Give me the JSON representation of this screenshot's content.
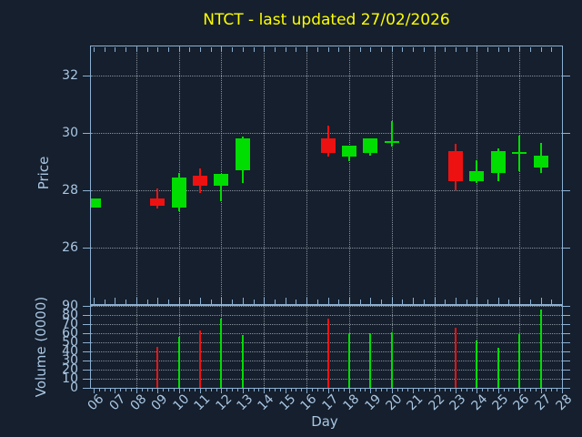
{
  "chart_data": {
    "type": "candlestick",
    "title": "NTCT - last updated 27/02/2026",
    "xlabel": "Day",
    "x_tick_labels": [
      "06",
      "07",
      "08",
      "09",
      "10",
      "11",
      "12",
      "13",
      "14",
      "15",
      "16",
      "17",
      "18",
      "19",
      "20",
      "21",
      "22",
      "23",
      "24",
      "25",
      "26",
      "27",
      "28"
    ],
    "x_grid_days": [
      8,
      10,
      12,
      14,
      16,
      18,
      20,
      22,
      24,
      26,
      28
    ],
    "price_axis": {
      "label": "Price",
      "ticks": [
        26,
        28,
        30,
        32
      ],
      "ylim": [
        24.0,
        33.0
      ],
      "grid": true
    },
    "volume_axis": {
      "label": "Volume (0000)",
      "ticks": [
        0,
        10,
        20,
        30,
        40,
        50,
        60,
        70,
        80,
        90
      ],
      "ylim": [
        0,
        91
      ],
      "grid": true
    },
    "legend": null,
    "ohlcv": [
      {
        "day": "06",
        "open": 27.4,
        "high": 27.7,
        "low": 27.4,
        "close": 27.7,
        "direction": "up",
        "volume": null
      },
      {
        "day": "09",
        "open": 27.7,
        "high": 28.05,
        "low": 27.35,
        "close": 27.45,
        "direction": "down",
        "volume": 45
      },
      {
        "day": "10",
        "open": 27.4,
        "high": 28.6,
        "low": 27.25,
        "close": 28.45,
        "direction": "up",
        "volume": 56
      },
      {
        "day": "11",
        "open": 28.5,
        "high": 28.75,
        "low": 27.9,
        "close": 28.15,
        "direction": "down",
        "volume": 63
      },
      {
        "day": "12",
        "open": 28.15,
        "high": 28.55,
        "low": 27.6,
        "close": 28.55,
        "direction": "up",
        "volume": 76
      },
      {
        "day": "13",
        "open": 28.7,
        "high": 29.85,
        "low": 28.25,
        "close": 29.8,
        "direction": "up",
        "volume": 58
      },
      {
        "day": "17",
        "open": 29.8,
        "high": 30.25,
        "low": 29.15,
        "close": 29.3,
        "direction": "down",
        "volume": 76
      },
      {
        "day": "18",
        "open": 29.15,
        "high": 29.55,
        "low": 29.0,
        "close": 29.55,
        "direction": "up",
        "volume": 60
      },
      {
        "day": "19",
        "open": 29.3,
        "high": 29.8,
        "low": 29.2,
        "close": 29.8,
        "direction": "up",
        "volume": 60
      },
      {
        "day": "20",
        "open": 29.7,
        "high": 30.4,
        "low": 29.5,
        "close": 29.72,
        "direction": "up",
        "volume": 61
      },
      {
        "day": "23",
        "open": 29.35,
        "high": 29.6,
        "low": 28.0,
        "close": 28.3,
        "direction": "down",
        "volume": 66
      },
      {
        "day": "24",
        "open": 28.3,
        "high": 29.05,
        "low": 28.25,
        "close": 28.65,
        "direction": "up",
        "volume": 52
      },
      {
        "day": "25",
        "open": 28.6,
        "high": 29.45,
        "low": 28.3,
        "close": 29.35,
        "direction": "up",
        "volume": 44
      },
      {
        "day": "26",
        "open": 29.28,
        "high": 29.9,
        "low": 28.65,
        "close": 29.33,
        "direction": "up",
        "volume": 59
      },
      {
        "day": "27",
        "open": 28.8,
        "high": 29.65,
        "low": 28.6,
        "close": 29.2,
        "direction": "up",
        "volume": 86
      }
    ],
    "colors": {
      "background": "#151f2d",
      "spine": "#8cb0d2",
      "tick_label": "#a9c6e2",
      "title": "#ffff00",
      "up": "#00dd00",
      "down": "#ee1111"
    }
  }
}
